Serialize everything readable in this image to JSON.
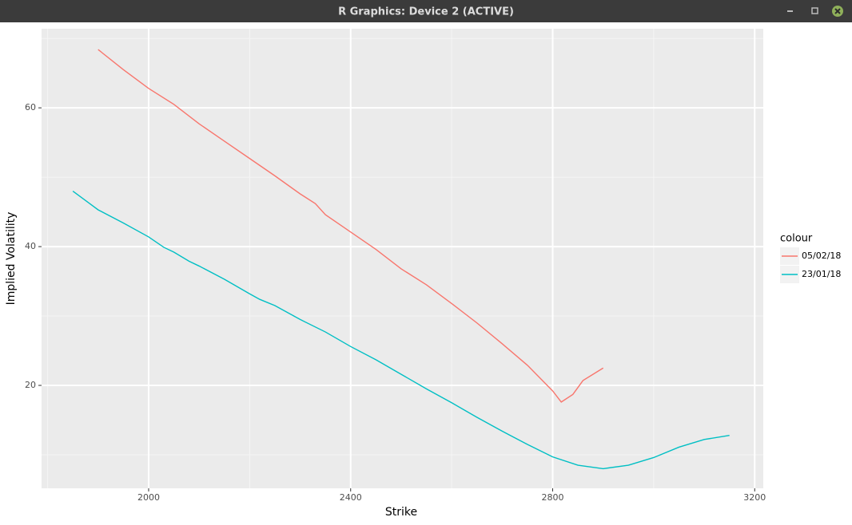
{
  "window": {
    "title": "R Graphics: Device 2 (ACTIVE)"
  },
  "chart_data": {
    "type": "line",
    "xlabel": "Strike",
    "ylabel": "Implied Volatility",
    "xlim": [
      1788,
      3217
    ],
    "ylim": [
      5.17,
      71.4
    ],
    "xticks": [
      2000,
      2400,
      2800,
      3200
    ],
    "yticks": [
      20,
      40,
      60
    ],
    "x_minor_grid": [
      1800,
      2200,
      2600,
      3000
    ],
    "y_minor_grid": [
      10,
      30,
      50,
      70
    ],
    "grid": true,
    "legend_title": "colour",
    "legend_position": "right",
    "series": [
      {
        "name": "05/02/18",
        "color": "#F8766D",
        "x": [
          1900,
          1950,
          2000,
          2050,
          2100,
          2150,
          2200,
          2250,
          2300,
          2330,
          2350,
          2400,
          2450,
          2500,
          2550,
          2600,
          2650,
          2700,
          2750,
          2800,
          2817,
          2840,
          2860,
          2900
        ],
        "values": [
          68.4,
          65.5,
          62.8,
          60.5,
          57.7,
          55.2,
          52.7,
          50.2,
          47.6,
          46.2,
          44.6,
          42.1,
          39.6,
          36.8,
          34.5,
          31.8,
          29.0,
          26.0,
          22.9,
          19.2,
          17.6,
          18.7,
          20.7,
          22.5
        ]
      },
      {
        "name": "23/01/18",
        "color": "#00BFC4",
        "x": [
          1850,
          1900,
          1950,
          2000,
          2030,
          2050,
          2080,
          2100,
          2150,
          2200,
          2220,
          2250,
          2300,
          2350,
          2400,
          2450,
          2500,
          2550,
          2600,
          2650,
          2700,
          2750,
          2800,
          2850,
          2900,
          2950,
          3000,
          3050,
          3100,
          3150
        ],
        "values": [
          48.0,
          45.3,
          43.4,
          41.4,
          39.9,
          39.2,
          37.9,
          37.2,
          35.3,
          33.2,
          32.4,
          31.5,
          29.5,
          27.7,
          25.6,
          23.7,
          21.6,
          19.5,
          17.5,
          15.4,
          13.4,
          11.5,
          9.7,
          8.5,
          8.0,
          8.5,
          9.6,
          11.1,
          12.2,
          12.8
        ]
      }
    ]
  }
}
